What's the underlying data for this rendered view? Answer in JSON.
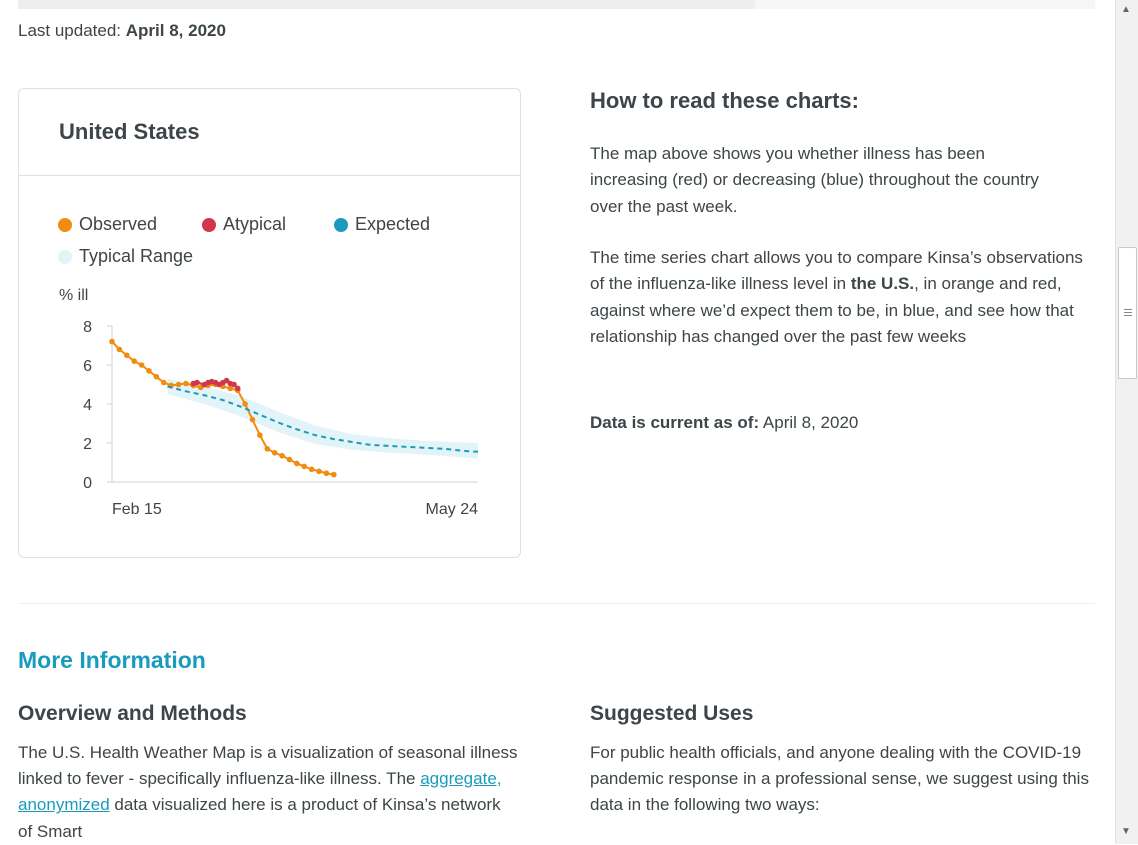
{
  "last_updated": {
    "label": "Last updated:",
    "date": "April 8, 2020"
  },
  "card": {
    "title": "United States",
    "legend": [
      {
        "label": "Observed",
        "color": "#f28c0f"
      },
      {
        "label": "Atypical",
        "color": "#d1364a"
      },
      {
        "label": "Expected",
        "color": "#1a9bbd"
      },
      {
        "label": "Typical Range",
        "color": "#e3f4f8"
      }
    ]
  },
  "chart_data": {
    "type": "line",
    "ylabel": "% ill",
    "y_ticks": [
      0,
      2,
      4,
      6,
      8
    ],
    "ylim": [
      0,
      8
    ],
    "x_tick_labels": [
      "Feb 15",
      "May 24"
    ],
    "x_domain_days": [
      0,
      99
    ],
    "grid": false,
    "series": [
      {
        "name": "Observed",
        "color": "#f28c0f",
        "style": "dots",
        "points": [
          [
            0,
            7.2
          ],
          [
            2,
            6.8
          ],
          [
            4,
            6.5
          ],
          [
            6,
            6.2
          ],
          [
            8,
            6.0
          ],
          [
            10,
            5.7
          ],
          [
            12,
            5.4
          ],
          [
            14,
            5.1
          ],
          [
            16,
            4.95
          ],
          [
            18,
            5.0
          ],
          [
            20,
            5.05
          ],
          [
            22,
            4.95
          ],
          [
            24,
            4.85
          ],
          [
            26,
            4.95
          ],
          [
            28,
            5.0
          ],
          [
            30,
            4.9
          ],
          [
            32,
            4.8
          ],
          [
            34,
            4.7
          ],
          [
            36,
            4.0
          ],
          [
            38,
            3.2
          ],
          [
            40,
            2.4
          ],
          [
            42,
            1.7
          ],
          [
            44,
            1.5
          ],
          [
            46,
            1.35
          ],
          [
            48,
            1.15
          ],
          [
            50,
            0.95
          ],
          [
            52,
            0.8
          ],
          [
            54,
            0.65
          ],
          [
            56,
            0.55
          ],
          [
            58,
            0.45
          ],
          [
            60,
            0.38
          ]
        ]
      },
      {
        "name": "Atypical",
        "color": "#d1364a",
        "style": "dots",
        "points": [
          [
            22,
            5.05
          ],
          [
            23,
            5.1
          ],
          [
            25,
            5.0
          ],
          [
            26,
            5.1
          ],
          [
            27,
            5.15
          ],
          [
            28,
            5.1
          ],
          [
            29,
            5.0
          ],
          [
            30,
            5.1
          ],
          [
            31,
            5.2
          ],
          [
            32,
            5.05
          ],
          [
            33,
            5.0
          ],
          [
            34,
            4.8
          ]
        ]
      },
      {
        "name": "Expected",
        "color": "#1a9bbd",
        "style": "dashed",
        "points": [
          [
            15,
            4.9
          ],
          [
            20,
            4.65
          ],
          [
            25,
            4.45
          ],
          [
            30,
            4.2
          ],
          [
            35,
            3.85
          ],
          [
            40,
            3.45
          ],
          [
            45,
            3.05
          ],
          [
            50,
            2.7
          ],
          [
            55,
            2.4
          ],
          [
            60,
            2.2
          ],
          [
            65,
            2.05
          ],
          [
            70,
            1.9
          ],
          [
            75,
            1.85
          ],
          [
            80,
            1.8
          ],
          [
            85,
            1.75
          ],
          [
            90,
            1.7
          ],
          [
            95,
            1.6
          ],
          [
            99,
            1.55
          ]
        ]
      }
    ],
    "typical_range": {
      "color": "#e3f4f8",
      "upper": [
        [
          15,
          5.3
        ],
        [
          25,
          4.9
        ],
        [
          35,
          4.4
        ],
        [
          45,
          3.6
        ],
        [
          55,
          2.9
        ],
        [
          65,
          2.45
        ],
        [
          75,
          2.25
        ],
        [
          85,
          2.1
        ],
        [
          99,
          2.0
        ]
      ],
      "lower": [
        [
          15,
          4.5
        ],
        [
          25,
          4.0
        ],
        [
          35,
          3.35
        ],
        [
          45,
          2.55
        ],
        [
          55,
          1.95
        ],
        [
          65,
          1.65
        ],
        [
          75,
          1.5
        ],
        [
          85,
          1.4
        ],
        [
          99,
          1.2
        ]
      ]
    }
  },
  "how_to": {
    "title": "How to read these charts:",
    "para1": "The map above shows you whether illness has been increasing (red) or decreasing (blue) throughout the country over the past week.",
    "para2_a": "The time series chart allows you to compare Kinsa’s observations of the influenza-like illness level in ",
    "para2_b": "the U.S.",
    "para2_c": ", in orange and red, against where we’d expect them to be, in blue, and see how that relationship has changed over the past few weeks",
    "current_label": "Data is current as of:",
    "current_date": "April 8, 2020"
  },
  "more_info": {
    "title": "More Information",
    "overview_title": "Overview and Methods",
    "overview_text_a": "The U.S. Health Weather Map is a visualization of seasonal illness linked to fever - specifically influenza-like illness. The ",
    "overview_link": "aggregate, anonymized",
    "overview_text_b": " data visualized here is a product of Kinsa’s network of Smart",
    "uses_title": "Suggested Uses",
    "uses_text": "For public health officials, and anyone dealing with the COVID-19 pandemic response in a professional sense, we suggest using this data in the following two ways:"
  }
}
